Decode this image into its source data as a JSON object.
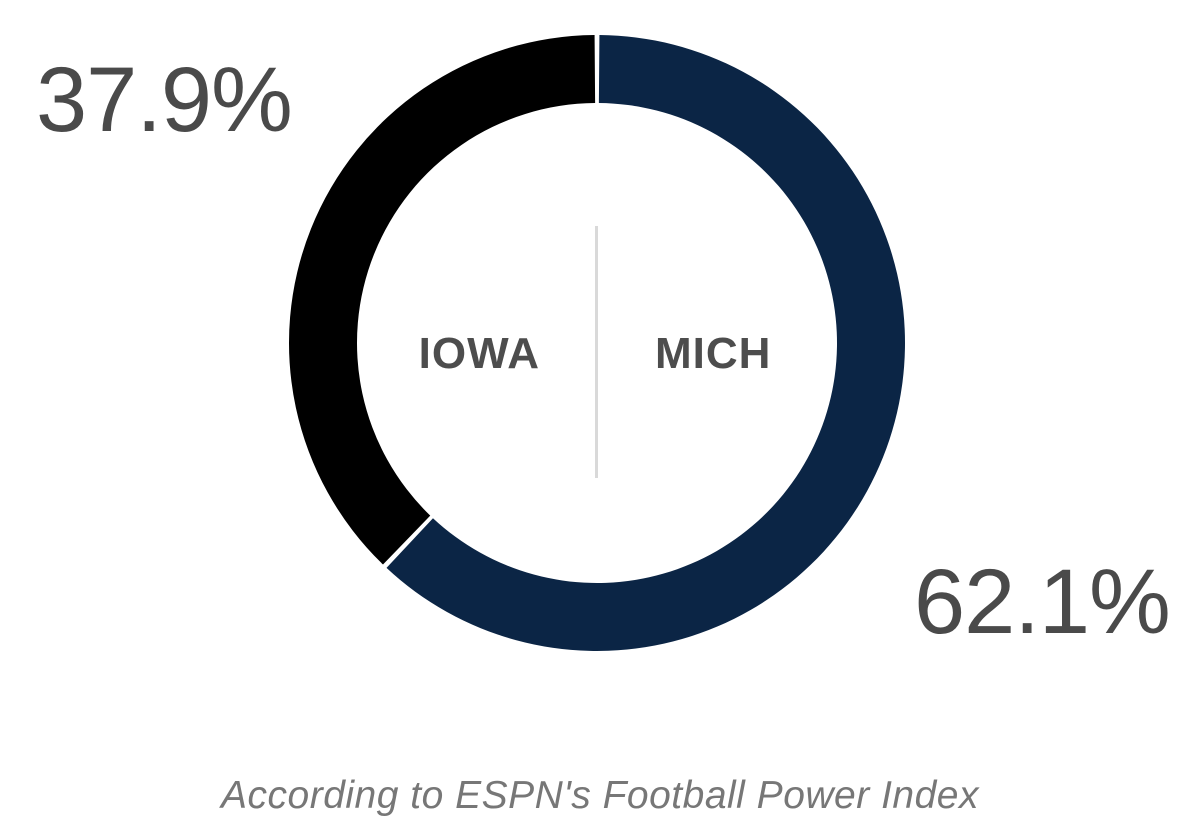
{
  "chart_data": {
    "type": "pie",
    "style": "donut",
    "categories": [
      "IOWA",
      "MICH"
    ],
    "values": [
      37.9,
      62.1
    ],
    "value_labels": [
      "37.9%",
      "62.1%"
    ],
    "colors": [
      "#000000",
      "#0b2545"
    ],
    "title": "",
    "legend": "none",
    "footnote": "According to ESPN's Football Power Index"
  }
}
